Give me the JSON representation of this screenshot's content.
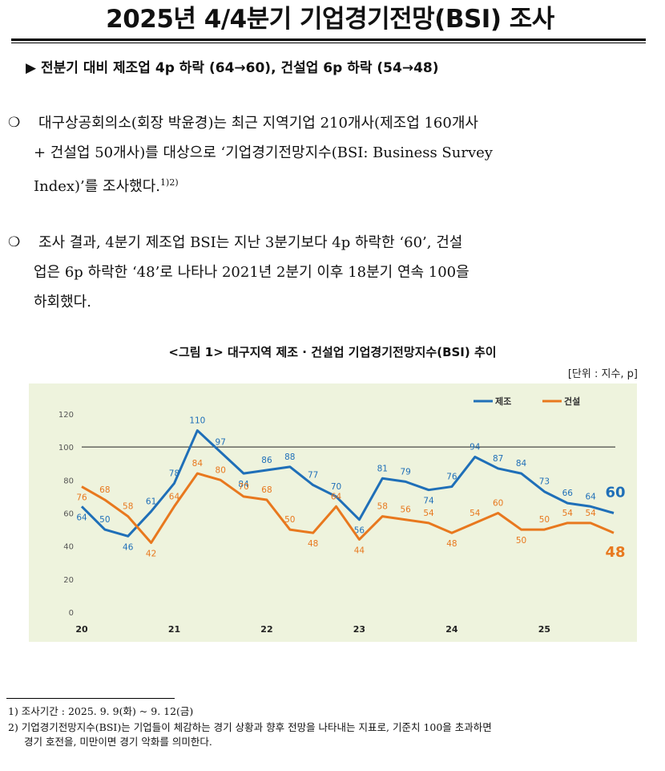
{
  "document": {
    "title": "2025년 4/4분기 기업경기전망(BSI) 조사",
    "subtitle": "▶ 전분기 대비 제조업 4p 하락 (64→60), 건설업 6p 하락 (54→48)",
    "para1": {
      "bullet": "❍",
      "line1": "대구상공회의소(회장 박윤경)는 최근 지역기업 210개사(제조업 160개사",
      "line2": "+ 건설업 50개사)를 대상으로 ‘기업경기전망지수(BSI: Business Survey",
      "line3": "Index)’를 조사했다.",
      "sup": "1)2)"
    },
    "para2": {
      "bullet": "❍",
      "line1": "조사 결과, 4분기 제조업 BSI는 지난 3분기보다 4p 하락한 ‘60’, 건설",
      "line2": "업은 6p 하락한 ‘48’로 나타나 2021년 2분기 이후 18분기 연속 100을",
      "line3": "하회했다."
    },
    "figure_title": "<그림 1> 대구지역 제조 · 건설업 기업경기전망지수(BSI) 추이",
    "unit": "[단위 : 지수, p]",
    "footnote1": "1) 조사기간 : 2025. 9. 9(화) ~ 9. 12(금)",
    "footnote2_line1": "2) 기업경기전망지수(BSI)는 기업들이 체감하는 경기 상황과 향후 전망을 나타내는 지표로, 기준치 100을 초과하면",
    "footnote2_line2": "경기 호전을, 미만이면 경기 악화를 의미한다."
  },
  "chart_data": {
    "type": "line",
    "x_labels": [
      "20",
      "21",
      "22",
      "23",
      "24",
      "25"
    ],
    "x_label_every": 4,
    "ylim": [
      0,
      120
    ],
    "yticks": [
      0,
      20,
      40,
      60,
      80,
      100,
      120
    ],
    "reference_line": 100,
    "legend_position": "top-right",
    "series": [
      {
        "name": "제조",
        "color": "#1f6fb8",
        "values": [
          64,
          50,
          46,
          61,
          78,
          110,
          97,
          84,
          86,
          88,
          77,
          70,
          56,
          81,
          79,
          74,
          76,
          94,
          87,
          84,
          73,
          66,
          64,
          60
        ],
        "last_label": "60"
      },
      {
        "name": "건설",
        "color": "#e8781e",
        "values": [
          76,
          68,
          58,
          42,
          64,
          84,
          80,
          70,
          68,
          50,
          48,
          64,
          44,
          58,
          56,
          54,
          48,
          54,
          60,
          50,
          50,
          54,
          54,
          48
        ],
        "last_label": "48"
      }
    ]
  }
}
